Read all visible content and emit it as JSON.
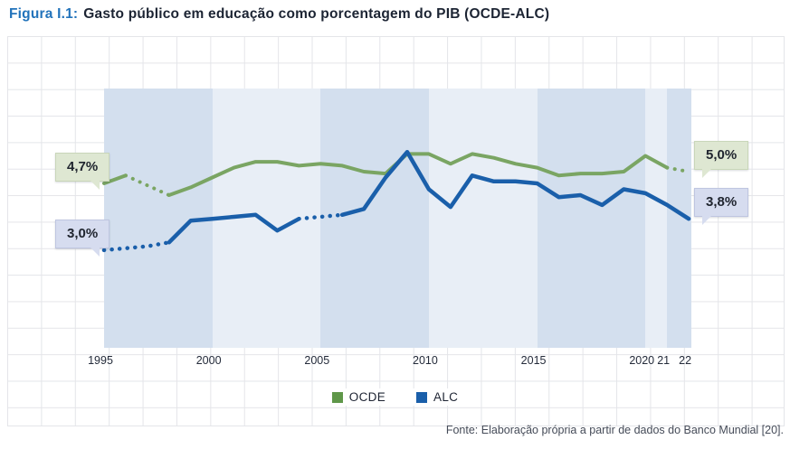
{
  "title": {
    "label": "Figura I.1:",
    "text": "Gasto público em educação como porcentagem do PIB (OCDE-ALC)"
  },
  "legend": {
    "items": [
      {
        "label": "OCDE",
        "color": "#5F9749"
      },
      {
        "label": "ALC",
        "color": "#1A5FAA"
      }
    ]
  },
  "footer": {
    "source": "Fonte: Elaboração própria a partir de dados do Banco Mundial [20]."
  },
  "colors": {
    "title_accent": "#2273BB",
    "title_text": "#1C2433",
    "band_dark": "#D3DFEE",
    "band_light": "#E8EEF6",
    "grid": "#e4e5e9",
    "ocde_line": "#7AA563",
    "alc_line": "#1A5FAA",
    "callout_green_bg": "#DEE7D2",
    "callout_lavender_bg": "#D6DCEF"
  },
  "chart_data": {
    "type": "line",
    "title": "Gasto público em educação como porcentagem do PIB (OCDE-ALC)",
    "xlabel": "",
    "ylabel": "",
    "y_axis_visible": false,
    "grid": true,
    "legend_position": "bottom",
    "x": [
      1995,
      1996,
      1997,
      1998,
      1999,
      2000,
      2001,
      2002,
      2003,
      2004,
      2005,
      2006,
      2007,
      2008,
      2009,
      2010,
      2011,
      2012,
      2013,
      2014,
      2015,
      2016,
      2017,
      2018,
      2019,
      2020,
      2021,
      2022
    ],
    "x_ticks": [
      {
        "year": 1995,
        "label": "1995"
      },
      {
        "year": 2000,
        "label": "2000"
      },
      {
        "year": 2005,
        "label": "2005"
      },
      {
        "year": 2010,
        "label": "2010"
      },
      {
        "year": 2015,
        "label": "2015"
      },
      {
        "year": 2020,
        "label": "2020"
      },
      {
        "year": 2021,
        "label": "21"
      },
      {
        "year": 2022,
        "label": "22"
      }
    ],
    "series": [
      {
        "name": "OCDE",
        "color": "#7AA563",
        "values": [
          4.7,
          4.9,
          4.65,
          4.4,
          4.6,
          4.85,
          5.1,
          5.25,
          5.25,
          5.15,
          5.2,
          5.15,
          5.0,
          4.95,
          5.45,
          5.45,
          5.2,
          5.45,
          5.35,
          5.2,
          5.1,
          4.9,
          4.95,
          4.95,
          5.0,
          5.4,
          5.1,
          5.0
        ],
        "dotted_year_ranges": [
          [
            1996,
            1998
          ],
          [
            2021,
            2022
          ]
        ]
      },
      {
        "name": "ALC",
        "color": "#1A5FAA",
        "values": [
          3.0,
          3.05,
          3.1,
          3.2,
          3.75,
          3.8,
          3.85,
          3.9,
          3.5,
          3.8,
          3.85,
          3.9,
          4.05,
          4.85,
          5.5,
          4.55,
          4.1,
          4.9,
          4.75,
          4.75,
          4.7,
          4.35,
          4.4,
          4.15,
          4.55,
          4.45,
          4.15,
          3.8
        ],
        "dotted_year_ranges": [
          [
            1995,
            1998
          ],
          [
            2004,
            2006
          ]
        ]
      }
    ],
    "annotations": [
      {
        "text": "4,7%",
        "series": "OCDE",
        "year": 1995,
        "value": 4.7,
        "theme": "green",
        "side": "left"
      },
      {
        "text": "3,0%",
        "series": "ALC",
        "year": 1995,
        "value": 3.0,
        "theme": "lavender",
        "side": "left"
      },
      {
        "text": "5,0%",
        "series": "OCDE",
        "year": 2022,
        "value": 5.0,
        "theme": "green",
        "side": "right"
      },
      {
        "text": "3,8%",
        "series": "ALC",
        "year": 2022,
        "value": 3.8,
        "theme": "lavender",
        "side": "right"
      }
    ],
    "period_bands": [
      {
        "from": 1995,
        "to": 2000,
        "shade": "dark"
      },
      {
        "from": 2000,
        "to": 2005,
        "shade": "light"
      },
      {
        "from": 2005,
        "to": 2010,
        "shade": "dark"
      },
      {
        "from": 2010,
        "to": 2015,
        "shade": "light"
      },
      {
        "from": 2015,
        "to": 2020,
        "shade": "dark"
      },
      {
        "from": 2020,
        "to": 2021,
        "shade": "light"
      },
      {
        "from": 2021,
        "to": 2022,
        "shade": "dark"
      }
    ]
  }
}
